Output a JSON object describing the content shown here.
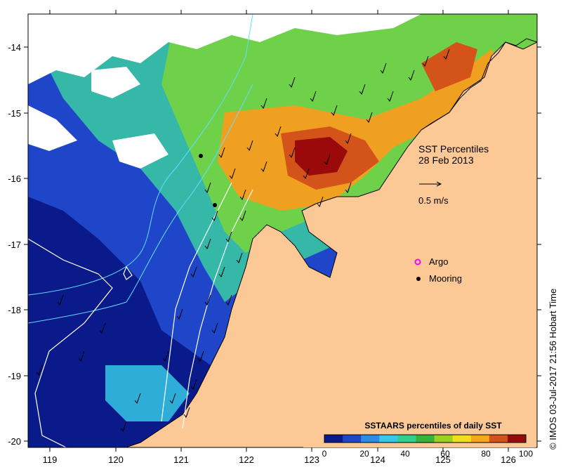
{
  "map": {
    "title_line1": "SST Percentiles",
    "title_line2": "28 Feb 2013",
    "vector_scale_label": "0.5 m/s",
    "legend_items": [
      {
        "label": "Argo",
        "color": "#ff00ff",
        "symbol": "ring"
      },
      {
        "label": "Mooring",
        "color": "#000000",
        "symbol": "dot"
      }
    ],
    "colorbar": {
      "title": "SSTAARS percentiles of daily SST",
      "ticks": [
        "0",
        "20",
        "40",
        "60",
        "80",
        "100"
      ],
      "colors": [
        "#0a1a8a",
        "#1f46c8",
        "#2a8ee8",
        "#36c8e6",
        "#2ed08e",
        "#35b33c",
        "#9cd21f",
        "#f0e01c",
        "#f7a61a",
        "#d4531a",
        "#9a0a0a"
      ]
    },
    "lon_ticks": [
      "119",
      "120",
      "121",
      "122",
      "123",
      "124",
      "125",
      "126"
    ],
    "lat_ticks": [
      "-14",
      "-15",
      "-16",
      "-17",
      "-18",
      "-19",
      "-20"
    ],
    "credit": "© IMOS 03-Jul-2017 21:56 Hobart Time",
    "colors": {
      "land": "#fcc896",
      "cloud": "#ffffff",
      "contour": "#5ee0ff"
    }
  }
}
